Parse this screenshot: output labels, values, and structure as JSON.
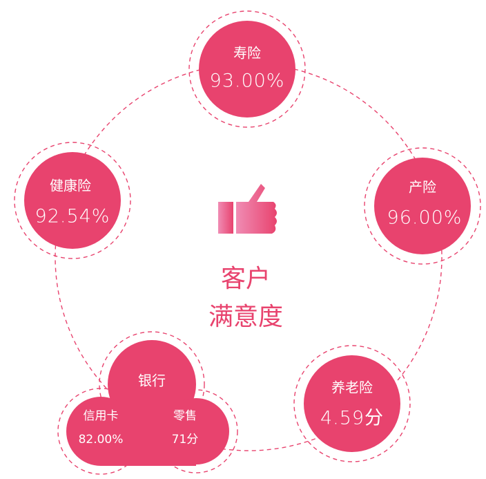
{
  "center": {
    "lines": [
      "客户",
      "满意度"
    ]
  },
  "nodes": [
    {
      "label": "寿险",
      "value": "93.00%"
    },
    {
      "label": "产险",
      "value": "96.00%"
    },
    {
      "label": "养老险",
      "value": "4.59分"
    },
    {
      "label": "健康险",
      "value": "92.54%"
    }
  ],
  "bank": {
    "label": "银行",
    "items": [
      {
        "label": "信用卡",
        "value": "82.00%"
      },
      {
        "label": "零售",
        "value": "71分"
      }
    ]
  }
}
